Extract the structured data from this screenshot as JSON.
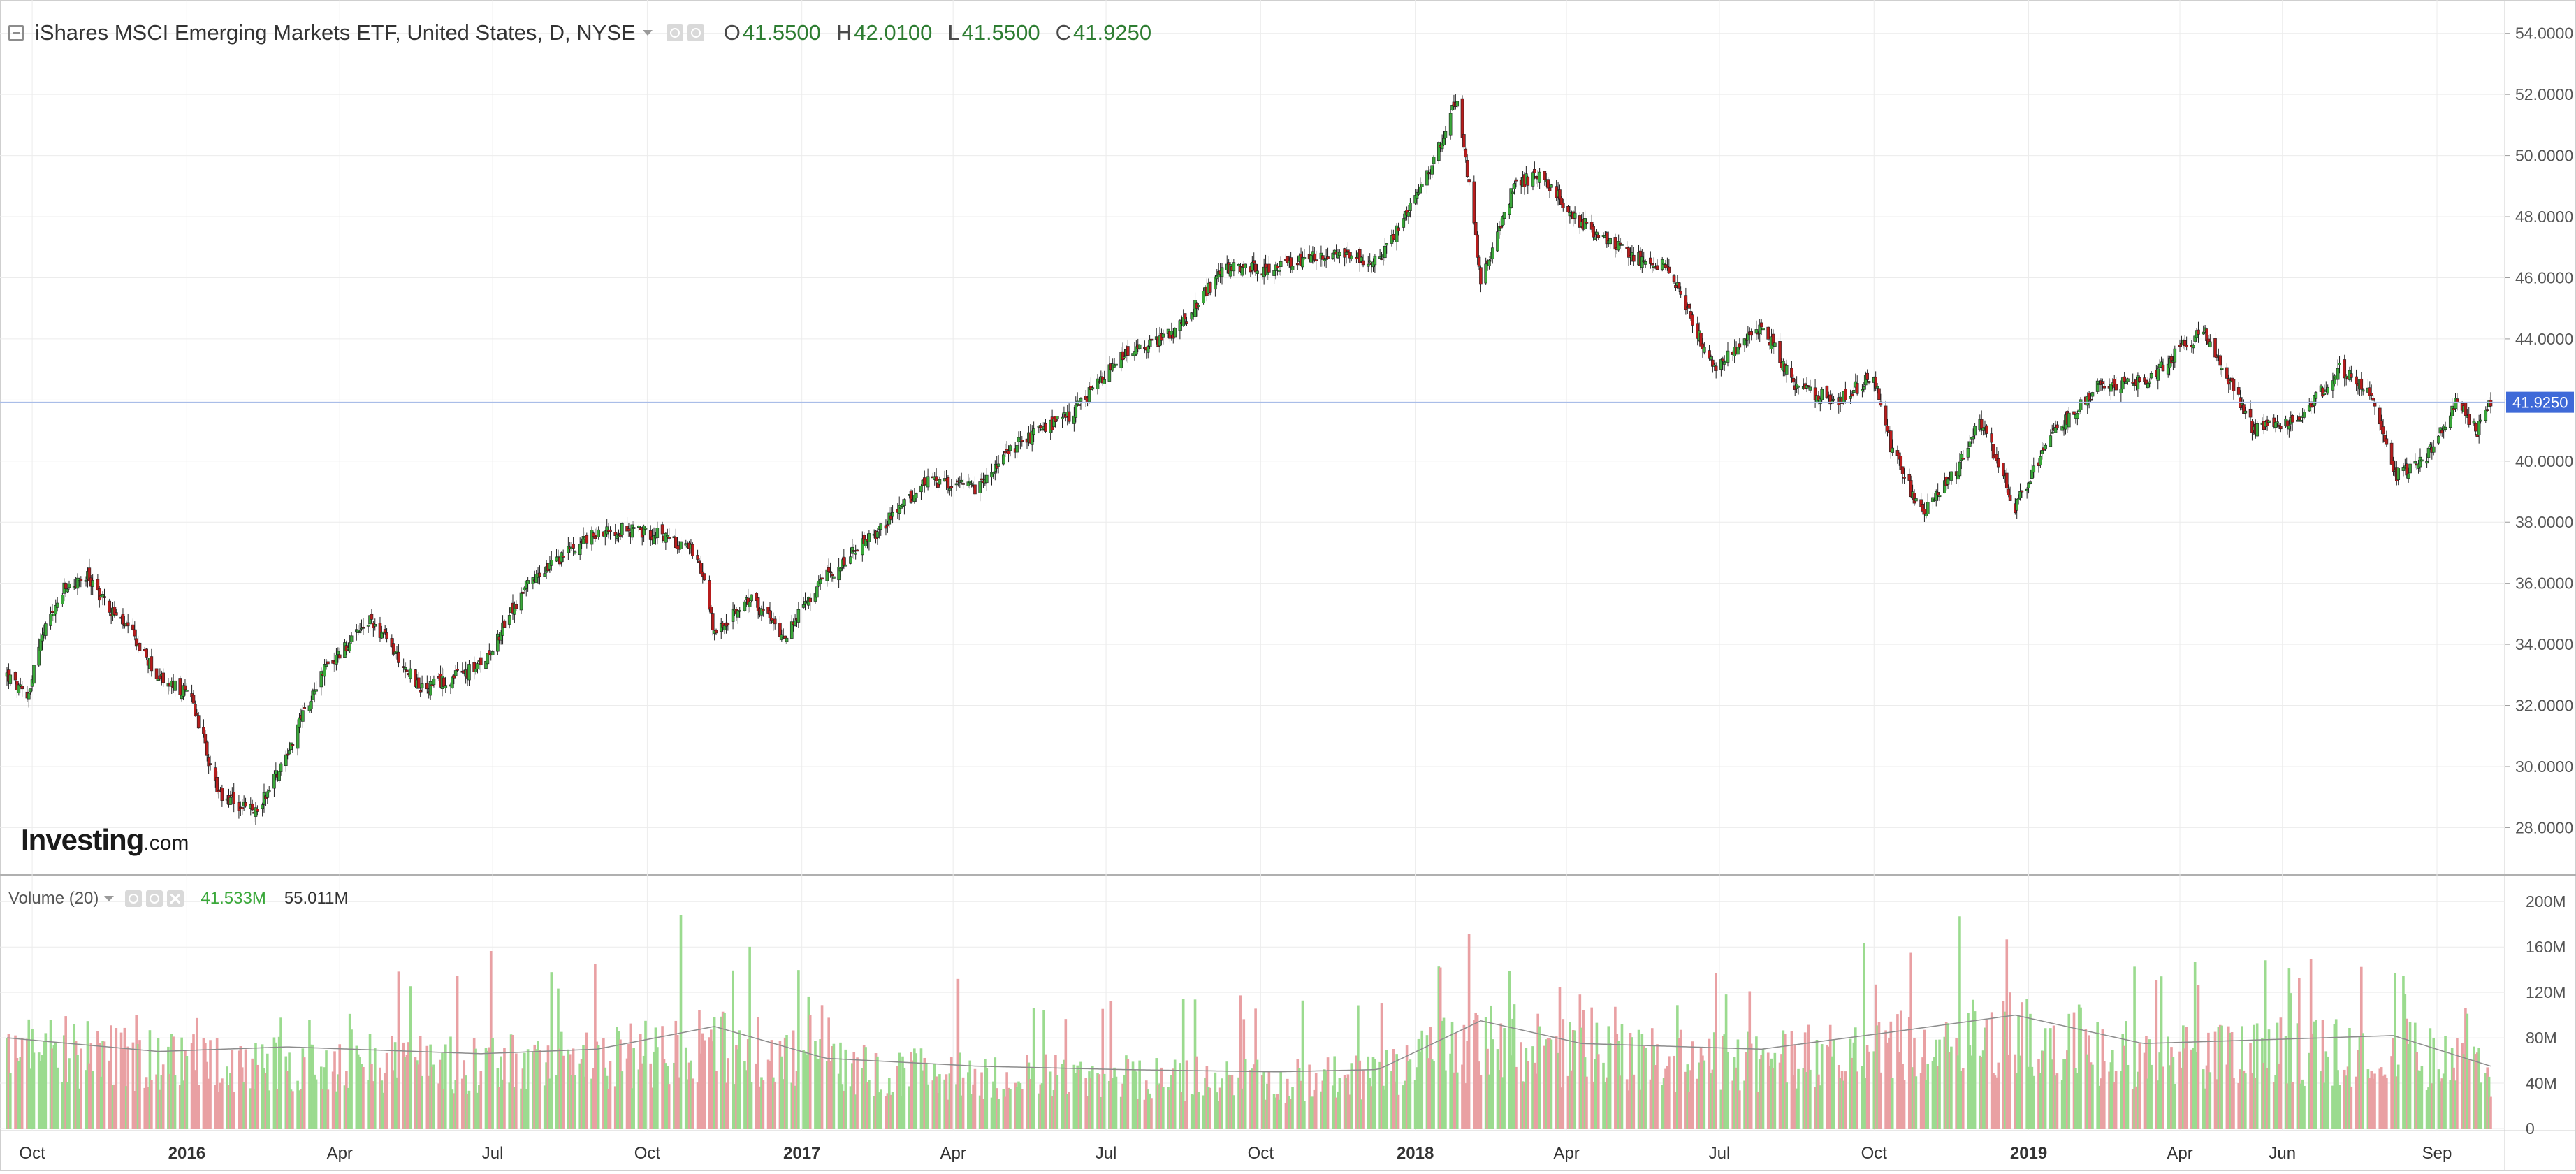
{
  "legend": {
    "title": "iShares MSCI Emerging Markets ETF, United States, D, NYSE",
    "ohlc": [
      {
        "key": "O",
        "value": "41.5500"
      },
      {
        "key": "H",
        "value": "42.0100"
      },
      {
        "key": "L",
        "value": "41.5500"
      },
      {
        "key": "C",
        "value": "41.9250"
      }
    ]
  },
  "volume_legend": {
    "title": "Volume (20)",
    "value_1": "41.533M",
    "value_2": "55.011M"
  },
  "icons": {
    "collapse": "collapse-square-icon",
    "dropdown": "caret-down-icon",
    "settings": "gear-icon",
    "visibility": "eye-icon",
    "close": "close-icon"
  },
  "watermark": {
    "brand": "Investing",
    "suffix": ".com"
  },
  "colors": {
    "up": "#3aa83a",
    "down": "#b71c1c",
    "volume_up": "#9bdb8f",
    "volume_down": "#e9a0a3",
    "last_price_badge": "#3f6ad8",
    "grid": "#ececec",
    "volume_ma": "#8c8c8c"
  },
  "chart_data": [
    {
      "type": "candlestick",
      "title": "iShares MSCI Emerging Markets ETF, United States, D, NYSE",
      "ylabel": "",
      "ylim": [
        26.5,
        55
      ],
      "y_ticks": [
        "54.0000",
        "52.0000",
        "50.0000",
        "48.0000",
        "46.0000",
        "44.0000",
        "42.0000",
        "40.0000",
        "38.0000",
        "36.0000",
        "34.0000",
        "32.0000",
        "30.0000",
        "28.0000"
      ],
      "last_price": "41.9250",
      "x_range": [
        "2015-09-16",
        "2019-10-03"
      ],
      "x_ticks": [
        {
          "label": "Oct",
          "date": "2015-10-01",
          "bold": false
        },
        {
          "label": "2016",
          "date": "2016-01-01",
          "bold": true
        },
        {
          "label": "Apr",
          "date": "2016-04-01",
          "bold": false
        },
        {
          "label": "Jul",
          "date": "2016-07-01",
          "bold": false
        },
        {
          "label": "Oct",
          "date": "2016-10-01",
          "bold": false
        },
        {
          "label": "2017",
          "date": "2017-01-01",
          "bold": true
        },
        {
          "label": "Apr",
          "date": "2017-04-01",
          "bold": false
        },
        {
          "label": "Jul",
          "date": "2017-07-01",
          "bold": false
        },
        {
          "label": "Oct",
          "date": "2017-10-01",
          "bold": false
        },
        {
          "label": "2018",
          "date": "2018-01-01",
          "bold": true
        },
        {
          "label": "Apr",
          "date": "2018-04-01",
          "bold": false
        },
        {
          "label": "Jul",
          "date": "2018-07-01",
          "bold": false
        },
        {
          "label": "Oct",
          "date": "2018-10-01",
          "bold": false
        },
        {
          "label": "2019",
          "date": "2019-01-01",
          "bold": true
        },
        {
          "label": "Apr",
          "date": "2019-04-01",
          "bold": false
        },
        {
          "label": "Jun",
          "date": "2019-06-01",
          "bold": false
        },
        {
          "label": "Sep",
          "date": "2019-09-01",
          "bold": false
        }
      ],
      "close_series": [
        {
          "date": "2015-09-16",
          "close": 33.0
        },
        {
          "date": "2015-09-28",
          "close": 32.2
        },
        {
          "date": "2015-10-05",
          "close": 34.0
        },
        {
          "date": "2015-10-20",
          "close": 35.8
        },
        {
          "date": "2015-11-03",
          "close": 36.2
        },
        {
          "date": "2015-11-16",
          "close": 35.2
        },
        {
          "date": "2015-12-01",
          "close": 34.2
        },
        {
          "date": "2015-12-15",
          "close": 32.9
        },
        {
          "date": "2016-01-04",
          "close": 32.3
        },
        {
          "date": "2016-01-20",
          "close": 29.0
        },
        {
          "date": "2016-02-11",
          "close": 28.5
        },
        {
          "date": "2016-03-01",
          "close": 30.5
        },
        {
          "date": "2016-03-20",
          "close": 33.0
        },
        {
          "date": "2016-04-20",
          "close": 34.8
        },
        {
          "date": "2016-05-20",
          "close": 32.5
        },
        {
          "date": "2016-06-24",
          "close": 33.3
        },
        {
          "date": "2016-07-20",
          "close": 35.8
        },
        {
          "date": "2016-08-20",
          "close": 37.3
        },
        {
          "date": "2016-09-08",
          "close": 37.8
        },
        {
          "date": "2016-10-10",
          "close": 37.6
        },
        {
          "date": "2016-10-31",
          "close": 37.0
        },
        {
          "date": "2016-11-10",
          "close": 34.3
        },
        {
          "date": "2016-12-01",
          "close": 35.5
        },
        {
          "date": "2016-12-22",
          "close": 34.3
        },
        {
          "date": "2017-01-15",
          "close": 36.2
        },
        {
          "date": "2017-02-15",
          "close": 37.7
        },
        {
          "date": "2017-03-15",
          "close": 39.3
        },
        {
          "date": "2017-04-15",
          "close": 39.1
        },
        {
          "date": "2017-05-10",
          "close": 40.6
        },
        {
          "date": "2017-06-10",
          "close": 41.5
        },
        {
          "date": "2017-07-10",
          "close": 43.4
        },
        {
          "date": "2017-08-10",
          "close": 44.2
        },
        {
          "date": "2017-09-10",
          "close": 46.3
        },
        {
          "date": "2017-10-10",
          "close": 46.3
        },
        {
          "date": "2017-11-10",
          "close": 46.8
        },
        {
          "date": "2017-12-10",
          "close": 46.5
        },
        {
          "date": "2018-01-10",
          "close": 49.5
        },
        {
          "date": "2018-01-26",
          "close": 51.9
        },
        {
          "date": "2018-02-09",
          "close": 46.0
        },
        {
          "date": "2018-03-01",
          "close": 49.0
        },
        {
          "date": "2018-03-15",
          "close": 49.4
        },
        {
          "date": "2018-04-10",
          "close": 47.8
        },
        {
          "date": "2018-05-10",
          "close": 46.7
        },
        {
          "date": "2018-06-01",
          "close": 46.3
        },
        {
          "date": "2018-06-28",
          "close": 43.0
        },
        {
          "date": "2018-07-26",
          "close": 44.5
        },
        {
          "date": "2018-08-15",
          "close": 42.4
        },
        {
          "date": "2018-09-10",
          "close": 42.0
        },
        {
          "date": "2018-10-01",
          "close": 42.8
        },
        {
          "date": "2018-10-11",
          "close": 40.5
        },
        {
          "date": "2018-10-29",
          "close": 38.3
        },
        {
          "date": "2018-11-20",
          "close": 39.8
        },
        {
          "date": "2018-12-03",
          "close": 41.4
        },
        {
          "date": "2018-12-24",
          "close": 38.5
        },
        {
          "date": "2019-01-15",
          "close": 40.8
        },
        {
          "date": "2019-02-10",
          "close": 42.4
        },
        {
          "date": "2019-03-10",
          "close": 42.6
        },
        {
          "date": "2019-04-15",
          "close": 44.3
        },
        {
          "date": "2019-05-15",
          "close": 41.0
        },
        {
          "date": "2019-06-10",
          "close": 41.3
        },
        {
          "date": "2019-07-05",
          "close": 43.0
        },
        {
          "date": "2019-07-25",
          "close": 42.2
        },
        {
          "date": "2019-08-06",
          "close": 39.5
        },
        {
          "date": "2019-08-25",
          "close": 40.0
        },
        {
          "date": "2019-09-12",
          "close": 42.0
        },
        {
          "date": "2019-09-25",
          "close": 41.0
        },
        {
          "date": "2019-10-03",
          "close": 41.925
        }
      ]
    },
    {
      "type": "bar",
      "title": "Volume (20)",
      "ylim": [
        0,
        210
      ],
      "y_ticks": [
        "200M",
        "160M",
        "120M",
        "80M",
        "40M",
        "0"
      ],
      "units": "M",
      "volume_level": [
        {
          "date": "2015-09-16",
          "avg": 80,
          "max": 108
        },
        {
          "date": "2015-12-15",
          "avg": 68,
          "max": 100
        },
        {
          "date": "2016-03-01",
          "avg": 72,
          "max": 115
        },
        {
          "date": "2016-06-24",
          "avg": 66,
          "max": 160
        },
        {
          "date": "2016-09-01",
          "avg": 70,
          "max": 148
        },
        {
          "date": "2016-11-10",
          "avg": 90,
          "max": 205
        },
        {
          "date": "2017-01-15",
          "avg": 62,
          "max": 120
        },
        {
          "date": "2017-04-15",
          "avg": 55,
          "max": 140
        },
        {
          "date": "2017-07-10",
          "avg": 52,
          "max": 125
        },
        {
          "date": "2017-10-10",
          "avg": 50,
          "max": 118
        },
        {
          "date": "2017-12-10",
          "avg": 52,
          "max": 125
        },
        {
          "date": "2018-02-09",
          "avg": 95,
          "max": 185
        },
        {
          "date": "2018-04-10",
          "avg": 75,
          "max": 125
        },
        {
          "date": "2018-07-26",
          "avg": 70,
          "max": 145
        },
        {
          "date": "2018-10-11",
          "avg": 85,
          "max": 170
        },
        {
          "date": "2018-12-24",
          "avg": 100,
          "max": 202
        },
        {
          "date": "2019-03-10",
          "avg": 75,
          "max": 145
        },
        {
          "date": "2019-05-15",
          "avg": 78,
          "max": 160
        },
        {
          "date": "2019-08-06",
          "avg": 82,
          "max": 140
        },
        {
          "date": "2019-10-03",
          "avg": 55,
          "max": 98
        }
      ],
      "ma_value": "41.533M",
      "last_value": "55.011M"
    }
  ]
}
